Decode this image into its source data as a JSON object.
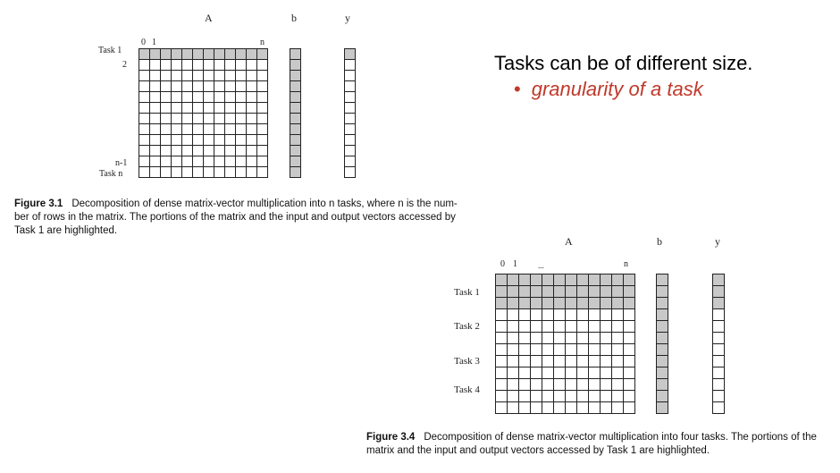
{
  "fig1": {
    "label_A": "A",
    "label_b": "b",
    "label_y": "y",
    "col_0": "0",
    "col_1": "1",
    "col_n": "n",
    "row_task1": "Task 1",
    "row_2": "2",
    "row_n_minus_1": "n-1",
    "row_task_n": "Task n",
    "caption_label": "Figure 3.1",
    "caption_line1": "Decomposition of dense matrix-vector multiplication into n tasks, where n is the num-",
    "caption_line2": "ber of rows in the matrix.  The portions of the matrix and the input and output vectors accessed by",
    "caption_line3": "Task 1 are highlighted."
  },
  "fig2": {
    "label_A": "A",
    "label_b": "b",
    "label_y": "y",
    "col_0": "0",
    "col_1": "1",
    "col_dots": "...",
    "col_n": "n",
    "task1": "Task 1",
    "task2": "Task 2",
    "task3": "Task 3",
    "task4": "Task 4",
    "caption_label": "Figure 3.4",
    "caption_line1": "Decomposition of dense matrix-vector multiplication into four tasks.  The portions of the",
    "caption_line2": "matrix and the input and output vectors accessed by Task 1 are highlighted."
  },
  "slide": {
    "title": "Tasks can be of different size.",
    "bullet_char": "•",
    "bullet_text": "granularity of a task"
  }
}
